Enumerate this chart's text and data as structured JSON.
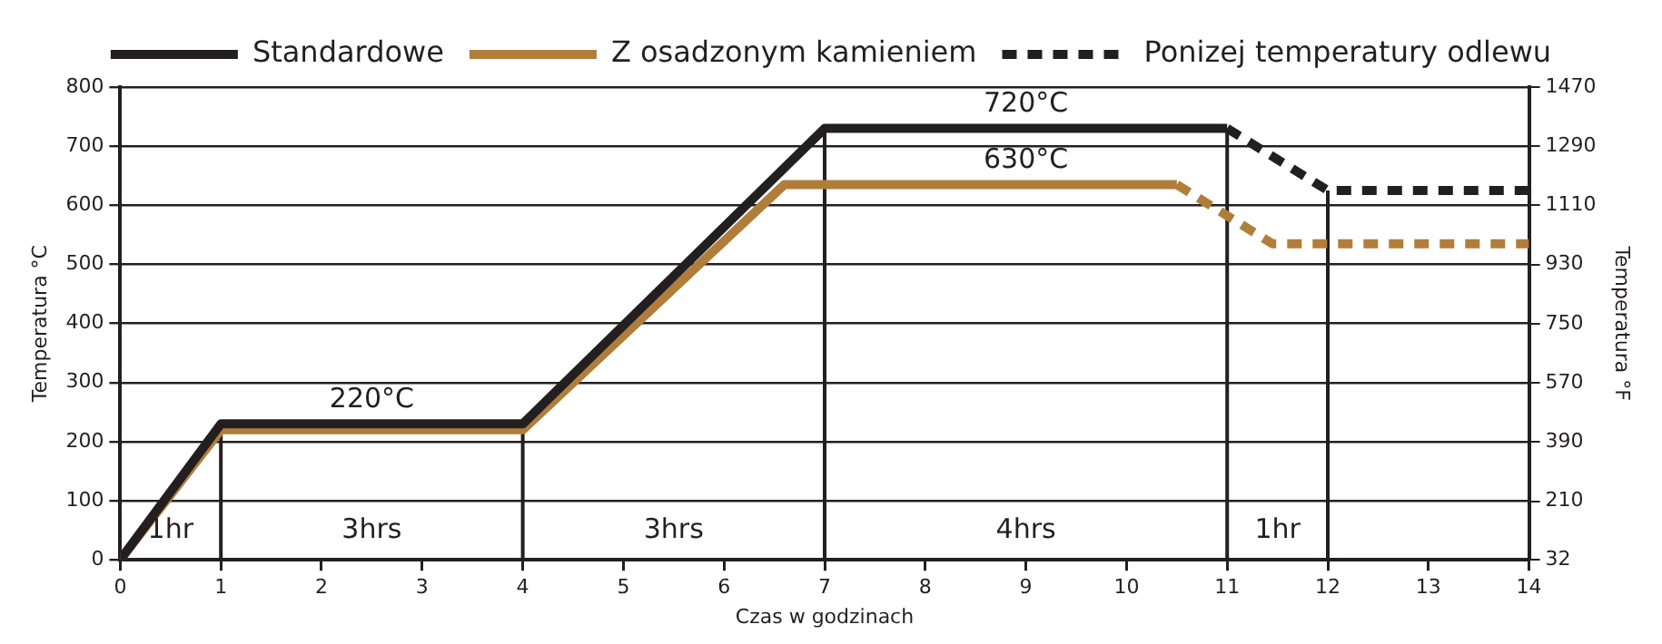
{
  "chart_data": {
    "type": "line",
    "xlabel": "Czas w godzinach",
    "ylabel": "Temperatura °C",
    "y2label": "Temperatura °F",
    "xlim": [
      0,
      14
    ],
    "xticks": [
      0,
      1,
      2,
      3,
      4,
      5,
      6,
      7,
      8,
      9,
      10,
      11,
      12,
      13,
      14
    ],
    "ylim": [
      0,
      800
    ],
    "yticks": [
      0,
      100,
      200,
      300,
      400,
      500,
      600,
      700,
      800
    ],
    "y2lim": [
      32,
      1470
    ],
    "y2ticks": [
      32,
      210,
      390,
      570,
      750,
      930,
      1110,
      1290,
      1470
    ],
    "series": [
      {
        "name": "Standardowe",
        "color": "#231f20",
        "x": [
          0,
          1,
          4,
          7,
          11
        ],
        "values": [
          0,
          230,
          230,
          730,
          730
        ],
        "line_style": "solid"
      },
      {
        "name": "Z osadzonym kamieniem",
        "color": "#b07e3a",
        "x": [
          0,
          1,
          4,
          6.6,
          10.5
        ],
        "values": [
          0,
          220,
          220,
          635,
          635
        ],
        "line_style": "solid"
      },
      {
        "name": "Ponizej temperatury odlewu",
        "color": "#231f20",
        "x": [
          11,
          12,
          14
        ],
        "values": [
          730,
          625,
          625
        ],
        "line_style": "dashed"
      },
      {
        "color": "#b07e3a",
        "x": [
          10.5,
          11.45,
          14
        ],
        "values": [
          635,
          535,
          535
        ],
        "line_style": "dashed"
      }
    ],
    "ref_lines": [
      {
        "axis": "x",
        "value": 1,
        "color": "#231f20"
      },
      {
        "axis": "x",
        "value": 4,
        "color": "#231f20"
      },
      {
        "axis": "x",
        "value": 7,
        "color": "#231f20"
      },
      {
        "axis": "x",
        "value": 11,
        "color": "#231f20"
      },
      {
        "axis": "x",
        "value": 12,
        "color": "#231f20"
      }
    ],
    "annotations": [
      "1hr",
      "3hrs",
      "3hrs",
      "4hrs",
      "1hr",
      "220°C",
      "720°C",
      "630°C"
    ],
    "grid": "y",
    "legend": "top",
    "marker": "none"
  }
}
